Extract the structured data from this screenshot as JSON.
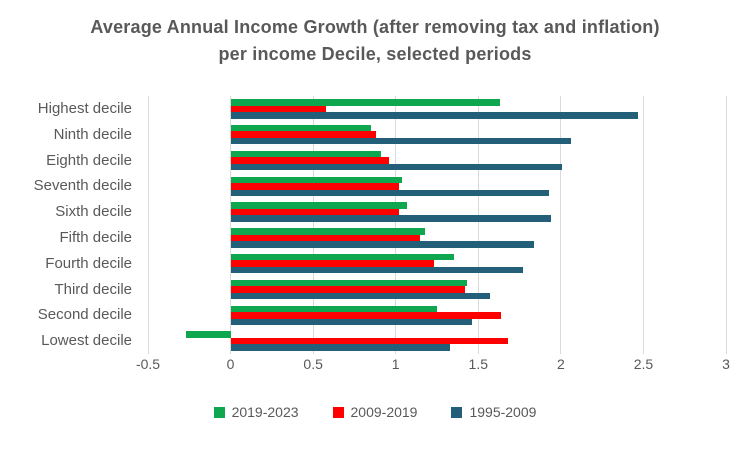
{
  "title": "Average Annual Income Growth (after removing tax and inflation) per income Decile, selected periods",
  "colors": {
    "title_text": "#595959",
    "axis_text": "#595959",
    "gridline": "#d9d9d9",
    "series_green": "#0ea64f",
    "series_red": "#ff0000",
    "series_blue": "#235f78",
    "background": "#ffffff"
  },
  "chart_data": {
    "type": "bar",
    "orientation": "horizontal",
    "title": "Average Annual Income Growth (after removing tax and inflation) per income Decile, selected periods",
    "categories": [
      "Highest decile",
      "Ninth decile",
      "Eighth decile",
      "Seventh decile",
      "Sixth decile",
      "Fifth decile",
      "Fourth decile",
      "Third decile",
      "Second decile",
      "Lowest decile"
    ],
    "series": [
      {
        "name": "2019-2023",
        "color": "#0ea64f",
        "values": [
          1.63,
          0.85,
          0.91,
          1.04,
          1.07,
          1.18,
          1.35,
          1.43,
          1.25,
          -0.27
        ]
      },
      {
        "name": "2009-2019",
        "color": "#ff0000",
        "values": [
          0.58,
          0.88,
          0.96,
          1.02,
          1.02,
          1.15,
          1.23,
          1.42,
          1.64,
          1.68
        ]
      },
      {
        "name": "1995-2009",
        "color": "#235f78",
        "values": [
          2.47,
          2.06,
          2.01,
          1.93,
          1.94,
          1.84,
          1.77,
          1.57,
          1.46,
          1.33
        ]
      }
    ],
    "xlabel": "",
    "ylabel": "",
    "xlim": [
      -0.5,
      3
    ],
    "xticks": [
      -0.5,
      0,
      0.5,
      1,
      1.5,
      2,
      2.5,
      3
    ],
    "xtick_labels": [
      "-0.5",
      "0",
      "0.5",
      "1",
      "1.5",
      "2",
      "2.5",
      "3"
    ],
    "grid": true,
    "legend_position": "bottom",
    "bar_order_top_to_bottom": [
      "2019-2023",
      "2009-2019",
      "1995-2009"
    ]
  }
}
